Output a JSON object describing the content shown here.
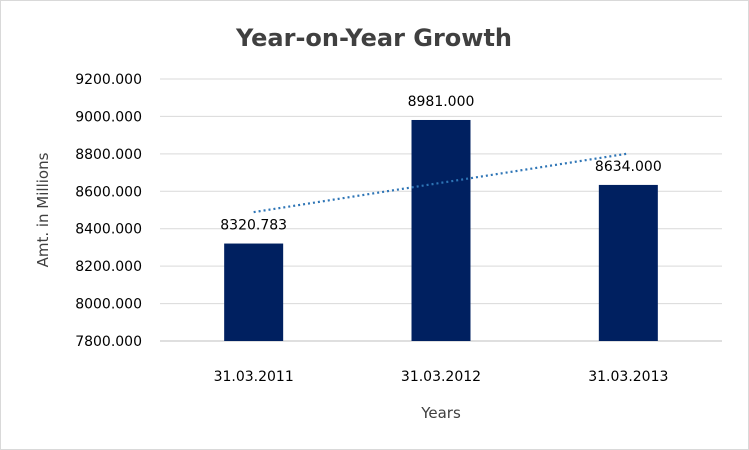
{
  "chart_data": {
    "type": "bar",
    "title": "Year-on-Year Growth",
    "xlabel": "Years",
    "ylabel": "Amt. in Millions",
    "categories": [
      "31.03.2011",
      "31.03.2012",
      "31.03.2013"
    ],
    "values": [
      8320.783,
      8981.0,
      8634.0
    ],
    "data_labels": [
      "8320.783",
      "8981.000",
      "8634.000"
    ],
    "ylim": [
      7800,
      9200
    ],
    "yticks": [
      7800,
      8000,
      8200,
      8400,
      8600,
      8800,
      9000,
      9200
    ],
    "ytick_labels": [
      "7800.000",
      "8000.000",
      "8200.000",
      "8400.000",
      "8600.000",
      "8800.000",
      "9000.000",
      "9200.000"
    ],
    "grid": true,
    "legend": "none",
    "bar_color": "#002060",
    "trendline": {
      "type": "linear",
      "style": "dotted",
      "color": "#2E75B6"
    }
  }
}
